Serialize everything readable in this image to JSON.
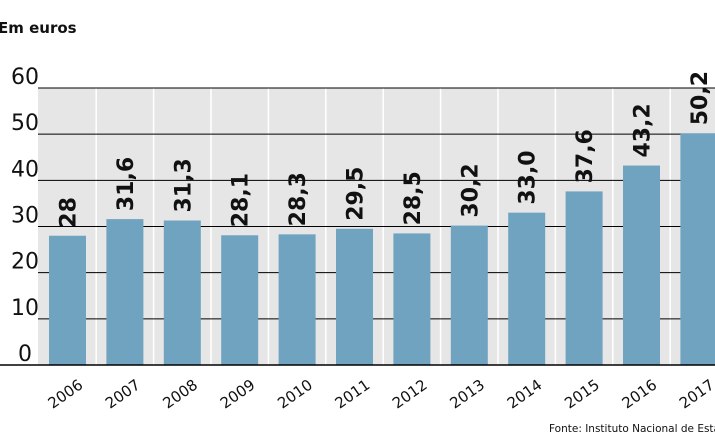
{
  "chart_data": {
    "type": "bar",
    "unit_label": "Em euros",
    "categories": [
      "2006",
      "2007",
      "2008",
      "2009",
      "2010",
      "2011",
      "2012",
      "2013",
      "2014",
      "2015",
      "2016",
      "2017"
    ],
    "values": [
      28,
      31.6,
      31.3,
      28.1,
      28.3,
      29.5,
      28.5,
      30.2,
      33.0,
      37.6,
      43.2,
      50.2
    ],
    "value_labels": [
      "28",
      "31,6",
      "31,3",
      "28,1",
      "28,3",
      "29,5",
      "28,5",
      "30,2",
      "33,0",
      "37,6",
      "43,2",
      "50,2"
    ],
    "yticks": [
      0,
      10,
      20,
      30,
      40,
      50,
      60
    ],
    "ylim": [
      0,
      60
    ],
    "grid": true,
    "bar_color": "#6fa3bf",
    "background_color": "#e6e6e6",
    "source": "Fonte: Instituto Nacional de Estatística"
  }
}
